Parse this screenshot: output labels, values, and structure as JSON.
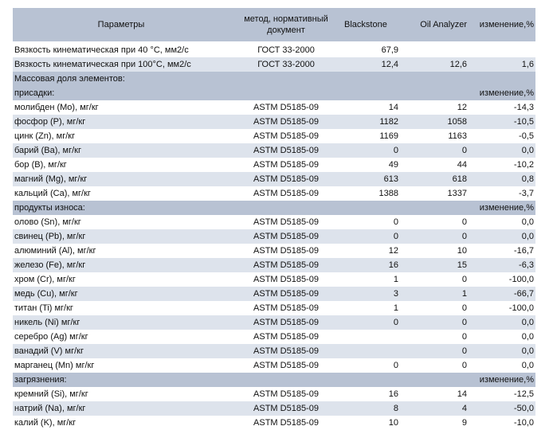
{
  "header": {
    "param": "Параметры",
    "method_line1": "метод, нормативный",
    "method_line2": "документ",
    "blackstone": "Blackstone",
    "oil_analyzer": "Oil Analyzer",
    "change": "изменение,%"
  },
  "viscosity": [
    {
      "name": "Вязкость кинематическая при 40 °С, мм2/с",
      "method": "ГОСТ 33-2000",
      "bs": "67,9",
      "oa": "",
      "ch": ""
    },
    {
      "name": "Вязкость кинематическая при 100°С, мм2/с",
      "method": "ГОСТ 33-2000",
      "bs": "12,4",
      "oa": "12,6",
      "ch": "1,6"
    }
  ],
  "mass_title": "Массовая доля элементов:",
  "additives": {
    "title": "присадки:",
    "change": "изменение,%",
    "rows": [
      {
        "name": "молибден (Mo), мг/кг",
        "method": "ASTM D5185-09",
        "bs": "14",
        "oa": "12",
        "ch": "-14,3"
      },
      {
        "name": "фосфор (P), мг/кг",
        "method": "ASTM D5185-09",
        "bs": "1182",
        "oa": "1058",
        "ch": "-10,5"
      },
      {
        "name": "цинк (Zn), мг/кг",
        "method": "ASTM D5185-09",
        "bs": "1169",
        "oa": "1163",
        "ch": "-0,5"
      },
      {
        "name": "барий (Ba), мг/кг",
        "method": "ASTM D5185-09",
        "bs": "0",
        "oa": "0",
        "ch": "0,0"
      },
      {
        "name": "бор (B), мг/кг",
        "method": "ASTM D5185-09",
        "bs": "49",
        "oa": "44",
        "ch": "-10,2"
      },
      {
        "name": "магний (Mg), мг/кг",
        "method": "ASTM D5185-09",
        "bs": "613",
        "oa": "618",
        "ch": "0,8"
      },
      {
        "name": "кальций (Ca), мг/кг",
        "method": "ASTM D5185-09",
        "bs": "1388",
        "oa": "1337",
        "ch": "-3,7"
      }
    ]
  },
  "wear": {
    "title": "продукты износа:",
    "change": "изменение,%",
    "rows": [
      {
        "name": "олово (Sn), мг/кг",
        "method": "ASTM D5185-09",
        "bs": "0",
        "oa": "0",
        "ch": "0,0"
      },
      {
        "name": "свинец (Pb), мг/кг",
        "method": "ASTM D5185-09",
        "bs": "0",
        "oa": "0",
        "ch": "0,0"
      },
      {
        "name": "алюминий (Al), мг/кг",
        "method": "ASTM D5185-09",
        "bs": "12",
        "oa": "10",
        "ch": "-16,7"
      },
      {
        "name": "железо (Fe), мг/кг",
        "method": "ASTM D5185-09",
        "bs": "16",
        "oa": "15",
        "ch": "-6,3"
      },
      {
        "name": "хром (Cr), мг/кг",
        "method": "ASTM D5185-09",
        "bs": "1",
        "oa": "0",
        "ch": "-100,0"
      },
      {
        "name": "медь (Cu), мг/кг",
        "method": "ASTM D5185-09",
        "bs": "3",
        "oa": "1",
        "ch": "-66,7"
      },
      {
        "name": "титан (Ti) мг/кг",
        "method": "ASTM D5185-09",
        "bs": "1",
        "oa": "0",
        "ch": "-100,0"
      },
      {
        "name": "никель (Ni) мг/кг",
        "method": "ASTM D5185-09",
        "bs": "0",
        "oa": "0",
        "ch": "0,0"
      },
      {
        "name": "серебро (Ag) мг/кг",
        "method": "ASTM D5185-09",
        "bs": "",
        "oa": "0",
        "ch": "0,0"
      },
      {
        "name": "ванадий (V) мг/кг",
        "method": "ASTM D5185-09",
        "bs": "",
        "oa": "0",
        "ch": "0,0"
      },
      {
        "name": "марганец (Mn) мг/кг",
        "method": "ASTM D5185-09",
        "bs": "0",
        "oa": "0",
        "ch": "0,0"
      }
    ]
  },
  "contamination": {
    "title": "загрязнения:",
    "change": "изменение,%",
    "rows": [
      {
        "name": "кремний (Si), мг/кг",
        "method": "ASTM D5185-09",
        "bs": "16",
        "oa": "14",
        "ch": "-12,5"
      },
      {
        "name": "натрий (Na), мг/кг",
        "method": "ASTM D5185-09",
        "bs": "8",
        "oa": "4",
        "ch": "-50,0"
      },
      {
        "name": "калий (K), мг/кг",
        "method": "ASTM D5185-09",
        "bs": "10",
        "oa": "9",
        "ch": "-10,0"
      }
    ]
  }
}
